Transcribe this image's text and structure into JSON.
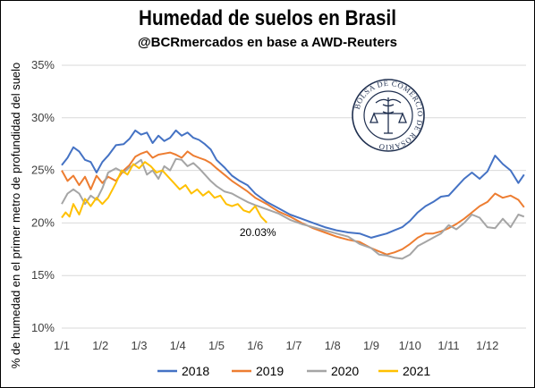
{
  "chart_data": {
    "type": "line",
    "title": "Humedad de suelos en Brasil",
    "subtitle": "@BCRmercados en base a AWD-Reuters",
    "ylabel": "% de humedad en el primer metro de profundidad del suelo",
    "xlabel": "",
    "ylim": [
      10,
      35
    ],
    "y_ticks": [
      "10%",
      "15%",
      "20%",
      "25%",
      "30%",
      "35%"
    ],
    "y_tick_values": [
      10,
      15,
      20,
      25,
      30,
      35
    ],
    "x_ticks": [
      "1/1",
      "1/2",
      "1/3",
      "1/4",
      "1/5",
      "1/6",
      "1/7",
      "1/8",
      "1/9",
      "1/10",
      "1/11",
      "1/12"
    ],
    "x_unit": "month",
    "grid": "horizontal",
    "legend_position": "bottom",
    "series": [
      {
        "name": "2018",
        "color": "#4472C4",
        "x": [
          1,
          1.15,
          1.3,
          1.45,
          1.6,
          1.75,
          1.9,
          2.05,
          2.2,
          2.4,
          2.6,
          2.75,
          2.9,
          3.05,
          3.2,
          3.35,
          3.5,
          3.65,
          3.8,
          3.95,
          4.1,
          4.25,
          4.4,
          4.55,
          4.7,
          4.85,
          5.0,
          5.2,
          5.4,
          5.6,
          5.8,
          6.0,
          6.3,
          6.6,
          6.9,
          7.2,
          7.5,
          7.8,
          8.1,
          8.4,
          8.7,
          9.0,
          9.2,
          9.4,
          9.6,
          9.8,
          10.0,
          10.2,
          10.4,
          10.6,
          10.8,
          11.0,
          11.2,
          11.4,
          11.6,
          11.8,
          12.0,
          12.2,
          12.4,
          12.6,
          12.8,
          12.95
        ],
        "values": [
          25.5,
          26.2,
          27.2,
          26.8,
          26.0,
          25.8,
          24.8,
          25.8,
          26.4,
          27.4,
          27.5,
          28.0,
          28.8,
          28.4,
          28.6,
          27.6,
          28.3,
          27.8,
          28.1,
          28.8,
          28.3,
          28.6,
          28.1,
          27.9,
          27.5,
          27.0,
          26.0,
          25.3,
          24.5,
          24.0,
          23.6,
          22.8,
          22.0,
          21.4,
          20.8,
          20.4,
          20.0,
          19.6,
          19.3,
          19.1,
          19.0,
          18.6,
          18.8,
          19.0,
          19.3,
          19.6,
          20.2,
          21.0,
          21.6,
          22.0,
          22.5,
          22.6,
          23.4,
          24.2,
          24.8,
          24.2,
          24.9,
          26.4,
          25.6,
          25.0,
          23.8,
          24.6
        ]
      },
      {
        "name": "2019",
        "color": "#ED7D31",
        "x": [
          1,
          1.15,
          1.3,
          1.45,
          1.6,
          1.75,
          1.9,
          2.05,
          2.2,
          2.4,
          2.6,
          2.75,
          2.9,
          3.05,
          3.2,
          3.35,
          3.5,
          3.65,
          3.8,
          3.95,
          4.1,
          4.25,
          4.4,
          4.55,
          4.7,
          4.85,
          5.0,
          5.2,
          5.4,
          5.6,
          5.8,
          6.0,
          6.3,
          6.6,
          6.9,
          7.2,
          7.5,
          7.8,
          8.1,
          8.4,
          8.7,
          9.0,
          9.2,
          9.4,
          9.6,
          9.8,
          10.0,
          10.2,
          10.4,
          10.6,
          10.8,
          11.0,
          11.2,
          11.4,
          11.6,
          11.8,
          12.0,
          12.2,
          12.4,
          12.6,
          12.8,
          12.95
        ],
        "values": [
          25.0,
          24.0,
          24.5,
          23.6,
          24.4,
          23.2,
          24.5,
          23.8,
          24.4,
          24.0,
          25.0,
          25.5,
          26.3,
          26.6,
          26.8,
          26.2,
          26.5,
          26.6,
          26.7,
          26.5,
          26.2,
          26.8,
          26.4,
          26.2,
          26.0,
          25.7,
          25.2,
          24.6,
          24.0,
          23.5,
          23.0,
          22.4,
          21.8,
          21.1,
          20.6,
          20.0,
          19.5,
          19.1,
          18.7,
          18.4,
          18.2,
          17.6,
          17.3,
          17.0,
          17.2,
          17.5,
          18.0,
          18.6,
          19.0,
          19.0,
          19.2,
          19.5,
          19.9,
          20.4,
          21.0,
          21.6,
          22.0,
          22.8,
          22.4,
          22.6,
          22.2,
          21.5
        ]
      },
      {
        "name": "2020",
        "color": "#A5A5A5",
        "x": [
          1,
          1.15,
          1.3,
          1.45,
          1.6,
          1.75,
          1.9,
          2.05,
          2.2,
          2.4,
          2.6,
          2.75,
          2.9,
          3.05,
          3.2,
          3.35,
          3.5,
          3.65,
          3.8,
          3.95,
          4.1,
          4.25,
          4.4,
          4.55,
          4.7,
          4.85,
          5.0,
          5.2,
          5.4,
          5.6,
          5.8,
          6.0,
          6.3,
          6.6,
          6.9,
          7.2,
          7.5,
          7.8,
          8.1,
          8.4,
          8.7,
          9.0,
          9.2,
          9.4,
          9.6,
          9.8,
          10.0,
          10.2,
          10.4,
          10.6,
          10.8,
          11.0,
          11.2,
          11.4,
          11.6,
          11.8,
          12.0,
          12.2,
          12.4,
          12.6,
          12.8,
          12.95
        ],
        "values": [
          21.8,
          22.8,
          23.2,
          22.8,
          21.8,
          22.6,
          22.2,
          23.3,
          24.8,
          25.2,
          24.8,
          25.3,
          25.6,
          26.0,
          24.6,
          25.0,
          24.2,
          25.4,
          25.0,
          26.1,
          26.0,
          25.4,
          25.7,
          25.2,
          24.6,
          24.0,
          23.5,
          23.0,
          22.8,
          22.4,
          22.0,
          21.7,
          21.3,
          20.9,
          20.3,
          19.9,
          19.6,
          19.3,
          19.0,
          18.7,
          18.0,
          17.6,
          17.0,
          16.9,
          16.7,
          16.6,
          17.0,
          17.8,
          18.2,
          18.6,
          19.0,
          19.8,
          19.4,
          20.0,
          20.8,
          20.5,
          19.6,
          19.5,
          20.4,
          19.6,
          20.8,
          20.6
        ]
      },
      {
        "name": "2021",
        "color": "#FFC000",
        "x": [
          1,
          1.1,
          1.2,
          1.3,
          1.45,
          1.6,
          1.75,
          1.9,
          2.05,
          2.2,
          2.4,
          2.55,
          2.7,
          2.85,
          3.0,
          3.15,
          3.3,
          3.45,
          3.6,
          3.75,
          3.9,
          4.05,
          4.2,
          4.35,
          4.5,
          4.65,
          4.8,
          4.95,
          5.1,
          5.25,
          5.4,
          5.55,
          5.7,
          5.85,
          6.0,
          6.15,
          6.3
        ],
        "values": [
          20.5,
          21.0,
          20.6,
          21.8,
          20.8,
          22.3,
          21.6,
          22.4,
          21.8,
          22.4,
          23.8,
          25.0,
          24.6,
          25.6,
          25.2,
          25.8,
          25.4,
          24.8,
          25.0,
          24.4,
          23.8,
          23.2,
          23.6,
          22.8,
          23.2,
          22.6,
          23.0,
          22.4,
          22.6,
          21.8,
          21.6,
          21.8,
          21.2,
          21.0,
          21.6,
          20.6,
          20.03
        ]
      }
    ],
    "annotations": [
      {
        "text": "20.03%",
        "series": "2021",
        "x": 6.3,
        "y": 20.03
      }
    ]
  },
  "seal": {
    "text": "BOLSA DE COMERCIO DE ROSARIO",
    "icon": "caduceus-scales-icon"
  }
}
